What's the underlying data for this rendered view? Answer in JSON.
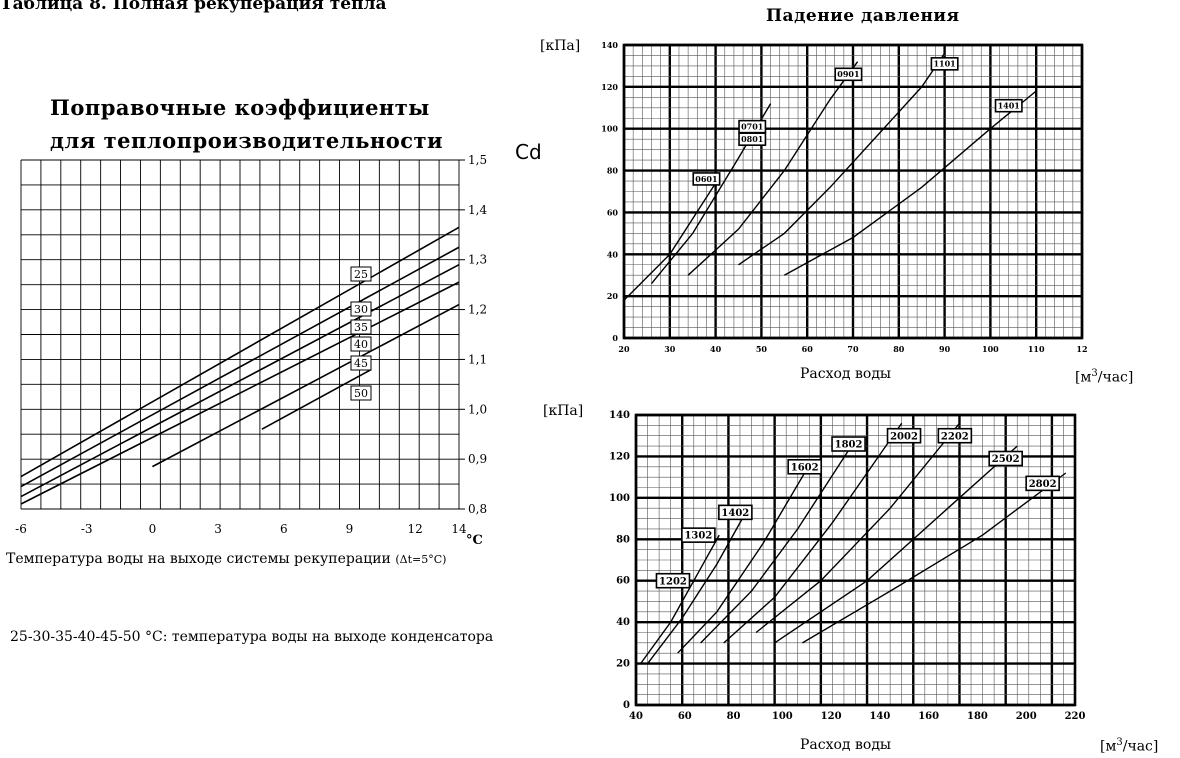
{
  "page": {
    "title": "Таблица 8. Полная рекуперация тепла",
    "pressure_title": "Падение давления",
    "note": "25-30-35-40-45-50 °C: температура воды на выходе конденсатора"
  },
  "chart_data": [
    {
      "type": "line",
      "title_line1": "Поправочные коэффициенты",
      "title_line2": "для теплопроизводительности",
      "ylabel": "Cd",
      "xlabel": "Температура воды на выходе системы рекуперации",
      "xlabel_suffix": "(Δt=5°C)",
      "x_unit": "°C",
      "xlim": [
        -6,
        14
      ],
      "ylim": [
        0.8,
        1.5
      ],
      "x_ticks": [
        "-6",
        "-3",
        "0",
        "3",
        "6",
        "9",
        "12",
        "14"
      ],
      "y_ticks": [
        "0,8",
        "0,9",
        "1,0",
        "1,1",
        "1,2",
        "1,3",
        "1,4",
        "1,5"
      ],
      "y_tick_values": [
        0.8,
        0.9,
        1.0,
        1.1,
        1.2,
        1.3,
        1.4,
        1.5
      ],
      "grid": true,
      "series": [
        {
          "name": "25",
          "x": [
            -6,
            14
          ],
          "y": [
            0.865,
            1.365
          ]
        },
        {
          "name": "30",
          "x": [
            -6,
            14
          ],
          "y": [
            0.845,
            1.325
          ]
        },
        {
          "name": "35",
          "x": [
            -6,
            14
          ],
          "y": [
            0.825,
            1.29
          ]
        },
        {
          "name": "40",
          "x": [
            -6,
            14
          ],
          "y": [
            0.81,
            1.255
          ]
        },
        {
          "name": "45",
          "x": [
            0,
            14
          ],
          "y": [
            0.885,
            1.21
          ]
        },
        {
          "name": "50",
          "x": [
            5,
            10
          ],
          "y": [
            0.96,
            1.08
          ]
        }
      ]
    },
    {
      "type": "line",
      "title": "Падение давления",
      "ylabel": "[кПа]",
      "xlabel": "Расход воды",
      "x_unit_base": "[м",
      "x_unit_sup": "3",
      "x_unit_rest": "/час]",
      "xlim": [
        20,
        120
      ],
      "ylim": [
        0,
        140
      ],
      "x_ticks": [
        "20",
        "30",
        "40",
        "50",
        "60",
        "70",
        "80",
        "90",
        "100",
        "110",
        "12"
      ],
      "y_ticks": [
        "0",
        "20",
        "40",
        "60",
        "80",
        "100",
        "120",
        "140"
      ],
      "grid": true,
      "series": [
        {
          "name": "0601",
          "x": [
            20,
            30,
            40
          ],
          "y": [
            18,
            40,
            74
          ]
        },
        {
          "name": "0701",
          "x": [
            26,
            35,
            45,
            52
          ],
          "y": [
            26,
            50,
            86,
            112
          ]
        },
        {
          "name": "0801",
          "x": [
            34,
            45,
            55,
            65,
            71
          ],
          "y": [
            30,
            52,
            80,
            114,
            132
          ]
        },
        {
          "name": "0901",
          "x": [
            45,
            55,
            65,
            75,
            85,
            90
          ],
          "y": [
            35,
            50,
            72,
            96,
            120,
            136
          ]
        },
        {
          "name": "1101",
          "x": [
            55,
            70,
            85,
            100,
            110
          ],
          "y": [
            30,
            48,
            72,
            100,
            118
          ]
        }
      ],
      "labels": [
        {
          "text": "0601",
          "x": 38,
          "y": 76
        },
        {
          "text": "0701",
          "x": 48,
          "y": 101
        },
        {
          "text": "0801",
          "x": 48,
          "y": 95
        },
        {
          "text": "0901",
          "x": 69,
          "y": 126
        },
        {
          "text": "1101",
          "x": 90,
          "y": 131
        },
        {
          "text": "1401",
          "x": 104,
          "y": 111
        }
      ]
    },
    {
      "type": "line",
      "ylabel": "[кПа]",
      "xlabel": "Расход воды",
      "x_unit_base": "[м",
      "x_unit_sup": "3",
      "x_unit_rest": "/час]",
      "xlim": [
        40,
        230
      ],
      "ylim": [
        0,
        140
      ],
      "x_ticks": [
        "40",
        "60",
        "80",
        "100",
        "120",
        "140",
        "160",
        "180",
        "200",
        "220"
      ],
      "y_ticks": [
        "0",
        "20",
        "40",
        "60",
        "80",
        "100",
        "120",
        "140"
      ],
      "grid": true,
      "series": [
        {
          "name": "1202",
          "x": [
            42,
            55,
            68,
            76
          ],
          "y": [
            20,
            40,
            66,
            82
          ]
        },
        {
          "name": "1302",
          "x": [
            45,
            60,
            75,
            86
          ],
          "y": [
            20,
            42,
            68,
            90
          ]
        },
        {
          "name": "1402",
          "x": [
            58,
            75,
            95,
            114
          ],
          "y": [
            25,
            45,
            78,
            114
          ]
        },
        {
          "name": "1602",
          "x": [
            68,
            90,
            110,
            132
          ],
          "y": [
            30,
            55,
            85,
            123
          ]
        },
        {
          "name": "1802",
          "x": [
            78,
            100,
            125,
            155
          ],
          "y": [
            30,
            52,
            88,
            136
          ]
        },
        {
          "name": "2002",
          "x": [
            92,
            120,
            150,
            180
          ],
          "y": [
            35,
            60,
            95,
            136
          ]
        },
        {
          "name": "2202",
          "x": [
            100,
            140,
            175,
            205
          ],
          "y": [
            30,
            60,
            95,
            125
          ]
        },
        {
          "name": "2502",
          "x": [
            112,
            150,
            190,
            226
          ],
          "y": [
            30,
            55,
            82,
            112
          ]
        }
      ],
      "labels": [
        {
          "text": "1202",
          "x": 56,
          "y": 60
        },
        {
          "text": "1302",
          "x": 67,
          "y": 82
        },
        {
          "text": "1402",
          "x": 83,
          "y": 93
        },
        {
          "text": "1602",
          "x": 113,
          "y": 115
        },
        {
          "text": "1802",
          "x": 132,
          "y": 126
        },
        {
          "text": "2002",
          "x": 156,
          "y": 130
        },
        {
          "text": "2202",
          "x": 178,
          "y": 130
        },
        {
          "text": "2502",
          "x": 200,
          "y": 119
        },
        {
          "text": "2802",
          "x": 216,
          "y": 107
        }
      ]
    }
  ]
}
